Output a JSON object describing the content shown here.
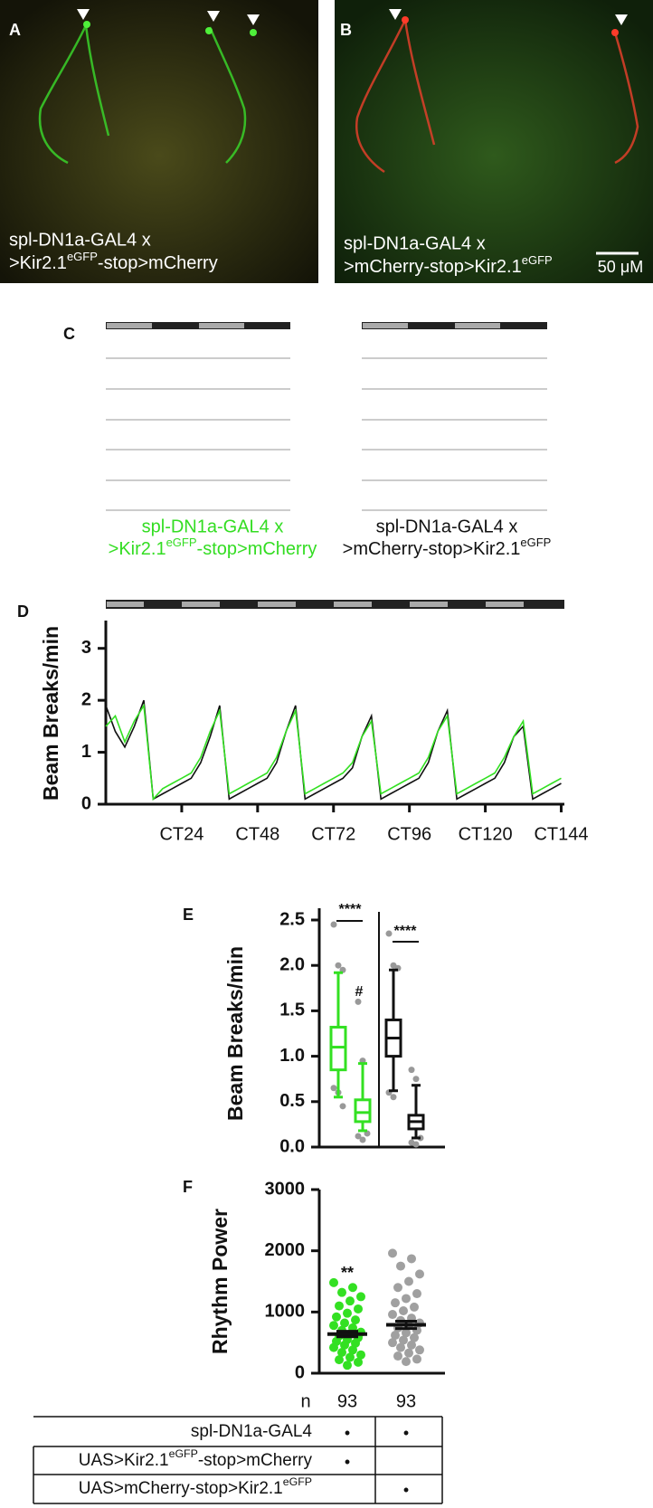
{
  "panel_a": {
    "label": "A",
    "caption_line1": "spl-DN1a-GAL4 x",
    "caption_line2": [
      ">Kir2.1",
      "eGFP",
      "-stop>mCherry"
    ]
  },
  "panel_b": {
    "label": "B",
    "caption_line1": "spl-DN1a-GAL4 x",
    "caption_line2": [
      ">mCherry-stop>Kir2.1",
      "eGFP"
    ],
    "scale_bar": "50 μM"
  },
  "panel_c": {
    "label": "C",
    "left_caption": {
      "line1": "spl-DN1a-GAL4 x",
      "line2": [
        ">Kir2.1",
        "eGFP",
        "-stop>mCherry"
      ]
    },
    "right_caption": {
      "line1": "spl-DN1a-GAL4 x",
      "line2": [
        ">mCherry-stop>Kir2.1",
        "eGFP"
      ]
    }
  },
  "chart_data": [
    {
      "type": "line",
      "panel": "D",
      "ylabel": "Beam Breaks/min",
      "x": [
        0,
        3,
        6,
        9,
        12,
        15,
        18,
        21,
        24,
        27,
        30,
        33,
        36,
        39,
        42,
        45,
        48,
        51,
        54,
        57,
        60,
        63,
        66,
        69,
        72,
        75,
        78,
        81,
        84,
        87,
        90,
        93,
        96,
        99,
        102,
        105,
        108,
        111,
        114,
        117,
        120,
        123,
        126,
        129,
        132,
        135,
        138,
        141,
        144
      ],
      "xlim": [
        0,
        145
      ],
      "xticks": [
        {
          "value": 24,
          "label": "CT24"
        },
        {
          "value": 48,
          "label": "CT48"
        },
        {
          "value": 72,
          "label": "CT72"
        },
        {
          "value": 96,
          "label": "CT96"
        },
        {
          "value": 120,
          "label": "CT120"
        },
        {
          "value": 144,
          "label": "CT144"
        }
      ],
      "ylim": [
        0,
        3.5
      ],
      "yticks": [
        0,
        1,
        2,
        3
      ],
      "series": [
        {
          "color": "#111111",
          "values": [
            1.9,
            1.4,
            1.1,
            1.5,
            2.0,
            0.1,
            0.2,
            0.3,
            0.4,
            0.5,
            0.8,
            1.3,
            1.9,
            0.1,
            0.2,
            0.3,
            0.4,
            0.5,
            0.8,
            1.4,
            1.9,
            0.1,
            0.2,
            0.3,
            0.4,
            0.5,
            0.7,
            1.3,
            1.7,
            0.1,
            0.2,
            0.3,
            0.4,
            0.5,
            0.8,
            1.4,
            1.8,
            0.1,
            0.2,
            0.3,
            0.4,
            0.5,
            0.8,
            1.3,
            1.5,
            0.1,
            0.2,
            0.3,
            0.4
          ]
        },
        {
          "color": "#33e022",
          "values": [
            1.5,
            1.7,
            1.2,
            1.6,
            1.9,
            0.1,
            0.3,
            0.4,
            0.5,
            0.6,
            0.9,
            1.4,
            1.8,
            0.2,
            0.3,
            0.4,
            0.5,
            0.6,
            0.9,
            1.4,
            1.8,
            0.2,
            0.3,
            0.4,
            0.5,
            0.6,
            0.8,
            1.3,
            1.6,
            0.2,
            0.3,
            0.4,
            0.5,
            0.6,
            0.9,
            1.4,
            1.7,
            0.2,
            0.3,
            0.4,
            0.5,
            0.6,
            0.9,
            1.3,
            1.6,
            0.2,
            0.3,
            0.4,
            0.5
          ]
        }
      ]
    },
    {
      "type": "box",
      "panel": "E",
      "ylabel": "Beam Breaks/min",
      "ylim": [
        0,
        2.5
      ],
      "yticks": [
        {
          "value": 0,
          "label": "0.0"
        },
        0.5,
        {
          "value": 1,
          "label": "1.0"
        },
        1.5,
        {
          "value": 2,
          "label": "2.0"
        },
        2.5
      ],
      "annotations": [
        "****",
        "#",
        "****"
      ],
      "outlier_color": "#999999",
      "boxes": [
        {
          "color": "#33e022",
          "min": 0.55,
          "q1": 0.85,
          "median": 1.1,
          "q3": 1.32,
          "max": 1.92,
          "outliers": [
            2.45,
            2.0,
            1.95,
            0.65,
            0.6,
            0.45
          ]
        },
        {
          "color": "#33e022",
          "min": 0.18,
          "q1": 0.28,
          "median": 0.38,
          "q3": 0.52,
          "max": 0.92,
          "outliers": [
            1.6,
            0.95,
            0.15,
            0.12,
            0.08
          ]
        },
        {
          "color": "#111111",
          "min": 0.62,
          "q1": 1.0,
          "median": 1.2,
          "q3": 1.4,
          "max": 1.95,
          "outliers": [
            2.35,
            2.0,
            1.97,
            0.6,
            0.55
          ]
        },
        {
          "color": "#111111",
          "min": 0.1,
          "q1": 0.2,
          "median": 0.28,
          "q3": 0.35,
          "max": 0.68,
          "outliers": [
            0.85,
            0.75,
            0.1,
            0.05,
            0.03
          ]
        }
      ]
    },
    {
      "type": "strip",
      "panel": "F",
      "ylabel": "Rhythm Power",
      "ylim": [
        0,
        3000
      ],
      "yticks": [
        0,
        1000,
        2000,
        3000
      ],
      "annotation": "**",
      "n_label": "n",
      "groups": [
        {
          "n": 93,
          "color": "#33e022",
          "mean": 640,
          "sem": 45,
          "values": [
            1480,
            1400,
            1320,
            1250,
            1180,
            1100,
            1050,
            980,
            920,
            870,
            820,
            780,
            740,
            700,
            670,
            640,
            610,
            580,
            550,
            520,
            490,
            460,
            420,
            380,
            340,
            300,
            260,
            220,
            180,
            130
          ]
        },
        {
          "n": 93,
          "color": "#a0a0a0",
          "mean": 790,
          "sem": 60,
          "values": [
            1960,
            1870,
            1750,
            1620,
            1500,
            1400,
            1300,
            1220,
            1150,
            1080,
            1020,
            960,
            900,
            860,
            820,
            780,
            740,
            700,
            660,
            620,
            580,
            540,
            500,
            460,
            420,
            380,
            330,
            280,
            230,
            190
          ]
        }
      ]
    }
  ],
  "genotype_table": {
    "rows": [
      {
        "label": [
          "spl-DN1a-GAL4"
        ],
        "col1": "•",
        "col2": "•"
      },
      {
        "label": [
          "UAS>Kir2.1",
          "eGFP",
          "-stop>mCherry"
        ],
        "col1": "•"
      },
      {
        "label": [
          "UAS>mCherry-stop>Kir2.1",
          "eGFP"
        ],
        "col2": "•"
      }
    ]
  }
}
